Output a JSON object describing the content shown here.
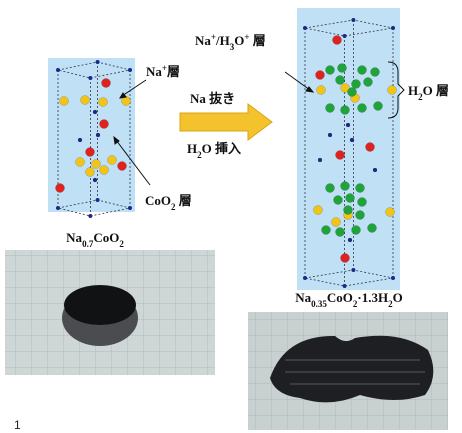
{
  "labels": {
    "na_layer": [
      {
        "t": "Na"
      },
      {
        "t": "+",
        "sup": true
      },
      {
        "t": "層"
      }
    ],
    "na_h3o_layer": [
      {
        "t": "Na"
      },
      {
        "t": "+",
        "sup": true
      },
      {
        "t": "/H"
      },
      {
        "t": "3",
        "sub": true
      },
      {
        "t": "O"
      },
      {
        "t": "+",
        "sup": true
      },
      {
        "t": " 層"
      }
    ],
    "na_removal": [
      {
        "t": "Na 抜き"
      }
    ],
    "h2o_insertion": [
      {
        "t": "H"
      },
      {
        "t": "2",
        "sub": true
      },
      {
        "t": "O 挿入"
      }
    ],
    "h2o_layer": [
      {
        "t": "H"
      },
      {
        "t": "2",
        "sub": true
      },
      {
        "t": "O 層"
      }
    ],
    "coo2_layer": [
      {
        "t": "CoO"
      },
      {
        "t": "2",
        "sub": true
      },
      {
        "t": " 層"
      }
    ],
    "left_formula": [
      {
        "t": "Na"
      },
      {
        "t": "0.7",
        "sub": true
      },
      {
        "t": "CoO"
      },
      {
        "t": "2",
        "sub": true
      }
    ],
    "right_formula": [
      {
        "t": "Na"
      },
      {
        "t": "0.35",
        "sub": true
      },
      {
        "t": "CoO"
      },
      {
        "t": "2",
        "sub": true
      },
      {
        "t": "·1.3H"
      },
      {
        "t": "2",
        "sub": true
      },
      {
        "t": "O"
      }
    ]
  },
  "page_number": "1"
}
